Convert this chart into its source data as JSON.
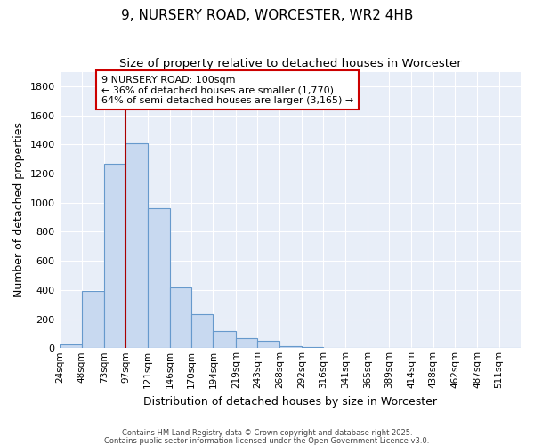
{
  "title": "9, NURSERY ROAD, WORCESTER, WR2 4HB",
  "subtitle": "Size of property relative to detached houses in Worcester",
  "xlabel": "Distribution of detached houses by size in Worcester",
  "ylabel": "Number of detached properties",
  "bin_labels": [
    "24sqm",
    "48sqm",
    "73sqm",
    "97sqm",
    "121sqm",
    "146sqm",
    "170sqm",
    "194sqm",
    "219sqm",
    "243sqm",
    "268sqm",
    "292sqm",
    "316sqm",
    "341sqm",
    "365sqm",
    "389sqm",
    "414sqm",
    "438sqm",
    "462sqm",
    "487sqm",
    "511sqm"
  ],
  "bin_left_edges": [
    24,
    48,
    73,
    97,
    121,
    146,
    170,
    194,
    219,
    243,
    268,
    292,
    316,
    341,
    365,
    389,
    414,
    438,
    462,
    487,
    511
  ],
  "bar_widths": [
    24,
    25,
    24,
    24,
    25,
    24,
    24,
    25,
    24,
    25,
    24,
    24,
    25,
    24,
    24,
    25,
    24,
    24,
    25,
    24,
    24
  ],
  "bar_heights": [
    25,
    390,
    1265,
    1410,
    960,
    420,
    235,
    115,
    70,
    50,
    15,
    5,
    3,
    3,
    2,
    2,
    1,
    1,
    1,
    1,
    1
  ],
  "bar_color": "#c8d9f0",
  "bar_edge_color": "#6699cc",
  "fig_bg_color": "#ffffff",
  "plot_bg_color": "#e8eef8",
  "grid_color": "#ffffff",
  "red_line_x": 97,
  "annotation_text": "9 NURSERY ROAD: 100sqm\n← 36% of detached houses are smaller (1,770)\n64% of semi-detached houses are larger (3,165) →",
  "annotation_box_facecolor": "#ffffff",
  "annotation_box_edgecolor": "#cc0000",
  "ylim": [
    0,
    1900
  ],
  "yticks": [
    0,
    200,
    400,
    600,
    800,
    1000,
    1200,
    1400,
    1600,
    1800
  ],
  "footer1": "Contains HM Land Registry data © Crown copyright and database right 2025.",
  "footer2": "Contains public sector information licensed under the Open Government Licence v3.0."
}
